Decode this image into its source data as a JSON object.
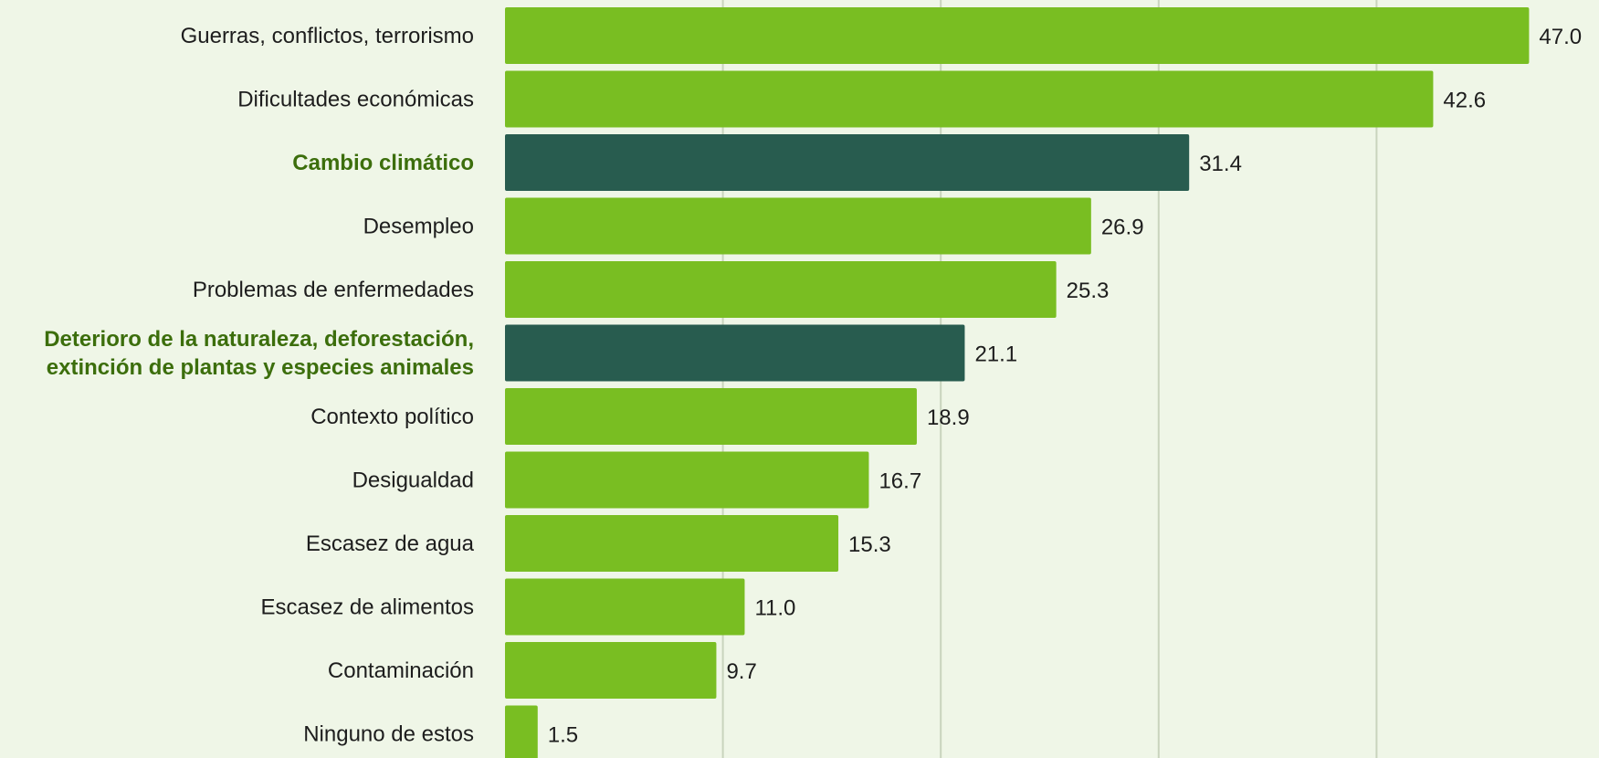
{
  "colors": {
    "background": "#eff6e7",
    "bar": "#79be22",
    "bar_highlight": "#285c4f",
    "label": "#1d1d1d",
    "label_highlight": "#3c6e0c",
    "grid": "#c9d4bd"
  },
  "chart_data": {
    "type": "bar",
    "orientation": "horizontal",
    "title": "",
    "xlabel": "",
    "ylabel": "",
    "xlim": [
      0,
      50
    ],
    "grid": true,
    "value_labels": true,
    "categories": [
      {
        "label": [
          "Guerras, conflictos, terrorismo"
        ],
        "value_text": "47.0",
        "highlight": false
      },
      {
        "label": [
          "Dificultades económicas"
        ],
        "value_text": "42.6",
        "highlight": false
      },
      {
        "label": [
          "Cambio climático"
        ],
        "value_text": "31.4",
        "highlight": true
      },
      {
        "label": [
          "Desempleo"
        ],
        "value_text": "26.9",
        "highlight": false
      },
      {
        "label": [
          "Problemas de enfermedades"
        ],
        "value_text": "25.3",
        "highlight": false
      },
      {
        "label": [
          "Deterioro de la naturaleza, deforestación,",
          "extinción de plantas y especies animales"
        ],
        "value_text": "21.1",
        "highlight": true
      },
      {
        "label": [
          "Contexto político"
        ],
        "value_text": "18.9",
        "highlight": false
      },
      {
        "label": [
          "Desigualdad"
        ],
        "value_text": "16.7",
        "highlight": false
      },
      {
        "label": [
          "Escasez de agua"
        ],
        "value_text": "15.3",
        "highlight": false
      },
      {
        "label": [
          "Escasez de alimentos"
        ],
        "value_text": "11.0",
        "highlight": false
      },
      {
        "label": [
          "Contaminación"
        ],
        "value_text": "9.7",
        "highlight": false
      },
      {
        "label": [
          "Ninguno de estos"
        ],
        "value_text": "1.5",
        "highlight": false
      }
    ],
    "values": [
      47.0,
      42.6,
      31.4,
      26.9,
      25.3,
      21.1,
      18.9,
      16.7,
      15.3,
      11.0,
      9.7,
      1.5
    ]
  }
}
